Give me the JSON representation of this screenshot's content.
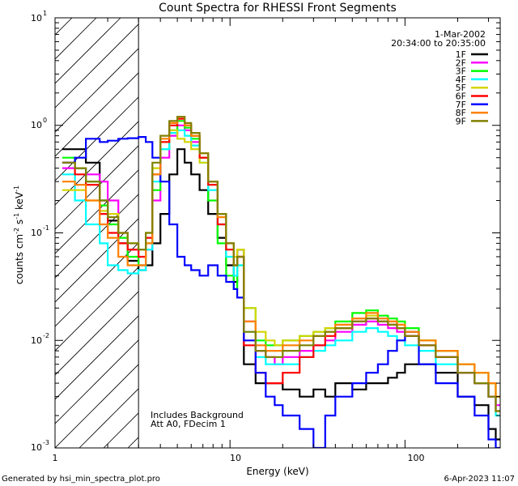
{
  "chart_data": {
    "type": "line",
    "title": "Count Spectra for RHESSI Front Segments",
    "xlabel": "Energy (keV)",
    "ylabel_main": "counts cm",
    "ylabel_exp1": "-2",
    "ylabel_s": " s",
    "ylabel_exp2": "-1",
    "ylabel_kev": " keV",
    "ylabel_exp3": "-1",
    "x_scale": "log",
    "y_scale": "log",
    "xlim": [
      1,
      350
    ],
    "ylim": [
      0.001,
      10
    ],
    "x_ticks": [
      {
        "value": 1,
        "label": "1"
      },
      {
        "value": 10,
        "label": "10"
      },
      {
        "value": 100,
        "label": "100"
      }
    ],
    "y_ticks": [
      {
        "value": 0.001,
        "base": "10",
        "exp": "-3"
      },
      {
        "value": 0.01,
        "base": "10",
        "exp": "-2"
      },
      {
        "value": 0.1,
        "base": "10",
        "exp": "-1"
      },
      {
        "value": 1,
        "base": "10",
        "exp": "0"
      },
      {
        "value": 10,
        "base": "10",
        "exp": "1"
      }
    ],
    "date": "1-Mar-2002",
    "time_range": "20:34:00 to 20:35:00",
    "legend_position": "top-right",
    "annotations": [
      "Includes Background",
      "Att A0, FDecim 1"
    ],
    "hatched_region_keV": [
      1,
      3
    ],
    "series": [
      {
        "name": "1F",
        "color": "#000000",
        "x": [
          1.1,
          1.3,
          1.5,
          1.8,
          2.0,
          2.3,
          2.6,
          3.0,
          3.3,
          3.6,
          4.0,
          4.5,
          5.0,
          5.5,
          6.0,
          6.7,
          7.5,
          8.5,
          9.5,
          10.5,
          11,
          12,
          14,
          16,
          18,
          20,
          25,
          30,
          35,
          40,
          50,
          60,
          70,
          80,
          90,
          100,
          120,
          150,
          200,
          250,
          300,
          330
        ],
        "y": [
          0.6,
          0.6,
          0.45,
          0.2,
          0.13,
          0.08,
          0.055,
          0.045,
          0.05,
          0.08,
          0.15,
          0.35,
          0.6,
          0.45,
          0.35,
          0.25,
          0.15,
          0.09,
          0.05,
          0.035,
          0.07,
          0.006,
          0.004,
          0.004,
          0.004,
          0.0035,
          0.003,
          0.0035,
          0.003,
          0.004,
          0.0035,
          0.004,
          0.004,
          0.0045,
          0.005,
          0.006,
          0.006,
          0.005,
          0.003,
          0.0025,
          0.0015,
          0.0012
        ]
      },
      {
        "name": "2F",
        "color": "#ff00ff",
        "x": [
          1.1,
          1.3,
          1.5,
          1.8,
          2.0,
          2.3,
          2.6,
          3.0,
          3.3,
          3.6,
          4.0,
          4.5,
          5.0,
          5.5,
          6.0,
          6.7,
          7.5,
          8.5,
          9.5,
          10.5,
          11,
          12,
          14,
          16,
          18,
          20,
          25,
          30,
          35,
          40,
          50,
          60,
          70,
          80,
          90,
          100,
          120,
          150,
          200,
          250,
          300,
          330
        ],
        "y": [
          0.4,
          0.4,
          0.35,
          0.3,
          0.2,
          0.1,
          0.07,
          0.05,
          0.07,
          0.2,
          0.5,
          0.8,
          1.0,
          0.9,
          0.7,
          0.5,
          0.3,
          0.15,
          0.08,
          0.05,
          0.06,
          0.015,
          0.008,
          0.007,
          0.006,
          0.007,
          0.008,
          0.009,
          0.01,
          0.012,
          0.014,
          0.015,
          0.014,
          0.013,
          0.012,
          0.011,
          0.009,
          0.007,
          0.005,
          0.004,
          0.003,
          0.0025
        ]
      },
      {
        "name": "3F",
        "color": "#00ff00",
        "x": [
          1.1,
          1.3,
          1.5,
          1.8,
          2.0,
          2.3,
          2.6,
          3.0,
          3.3,
          3.6,
          4.0,
          4.5,
          5.0,
          5.5,
          6.0,
          6.7,
          7.5,
          8.5,
          9.5,
          10.5,
          11,
          12,
          14,
          16,
          18,
          20,
          25,
          30,
          35,
          40,
          50,
          60,
          70,
          80,
          90,
          100,
          120,
          150,
          200,
          250,
          300,
          330
        ],
        "y": [
          0.5,
          0.4,
          0.3,
          0.18,
          0.12,
          0.09,
          0.06,
          0.05,
          0.08,
          0.25,
          0.6,
          0.9,
          1.1,
          0.95,
          0.75,
          0.5,
          0.2,
          0.08,
          0.04,
          0.03,
          0.05,
          0.02,
          0.01,
          0.009,
          0.009,
          0.01,
          0.011,
          0.012,
          0.013,
          0.015,
          0.018,
          0.019,
          0.017,
          0.016,
          0.015,
          0.013,
          0.01,
          0.008,
          0.006,
          0.005,
          0.004,
          0.003
        ]
      },
      {
        "name": "4F",
        "color": "#00ffff",
        "x": [
          1.1,
          1.3,
          1.5,
          1.8,
          2.0,
          2.3,
          2.6,
          3.0,
          3.3,
          3.6,
          4.0,
          4.5,
          5.0,
          5.5,
          6.0,
          6.7,
          7.5,
          8.5,
          9.5,
          10.5,
          11,
          12,
          14,
          16,
          18,
          20,
          25,
          30,
          35,
          40,
          50,
          60,
          70,
          80,
          90,
          100,
          120,
          150,
          200,
          250,
          300,
          330
        ],
        "y": [
          0.35,
          0.2,
          0.12,
          0.08,
          0.05,
          0.045,
          0.042,
          0.045,
          0.07,
          0.3,
          0.6,
          0.85,
          0.9,
          0.8,
          0.65,
          0.45,
          0.25,
          0.12,
          0.06,
          0.04,
          0.05,
          0.012,
          0.007,
          0.006,
          0.006,
          0.006,
          0.007,
          0.008,
          0.009,
          0.01,
          0.012,
          0.013,
          0.012,
          0.011,
          0.01,
          0.009,
          0.008,
          0.006,
          0.005,
          0.004,
          0.003,
          0.002
        ]
      },
      {
        "name": "5F",
        "color": "#d4d400",
        "x": [
          1.1,
          1.3,
          1.5,
          1.8,
          2.0,
          2.3,
          2.6,
          3.0,
          3.3,
          3.6,
          4.0,
          4.5,
          5.0,
          5.5,
          6.0,
          6.7,
          7.5,
          8.5,
          9.5,
          10.5,
          11,
          12,
          14,
          16,
          18,
          20,
          25,
          30,
          35,
          40,
          50,
          60,
          70,
          80,
          90,
          100,
          120,
          150,
          200,
          250,
          300,
          330
        ],
        "y": [
          0.25,
          0.25,
          0.2,
          0.16,
          0.15,
          0.1,
          0.08,
          0.07,
          0.1,
          0.4,
          0.7,
          0.9,
          0.75,
          0.7,
          0.6,
          0.45,
          0.3,
          0.15,
          0.08,
          0.06,
          0.07,
          0.02,
          0.012,
          0.01,
          0.009,
          0.01,
          0.011,
          0.012,
          0.013,
          0.014,
          0.016,
          0.017,
          0.016,
          0.015,
          0.014,
          0.012,
          0.01,
          0.008,
          0.006,
          0.005,
          0.004,
          0.003
        ]
      },
      {
        "name": "6F",
        "color": "#ff0000",
        "x": [
          1.1,
          1.3,
          1.5,
          1.8,
          2.0,
          2.3,
          2.6,
          3.0,
          3.3,
          3.6,
          4.0,
          4.5,
          5.0,
          5.5,
          6.0,
          6.7,
          7.5,
          8.5,
          9.5,
          10.5,
          11,
          12,
          14,
          16,
          18,
          20,
          25,
          30,
          35,
          40,
          50,
          60,
          70,
          80,
          90,
          100,
          120,
          150,
          200,
          250,
          300,
          330
        ],
        "y": [
          0.45,
          0.35,
          0.28,
          0.15,
          0.1,
          0.08,
          0.07,
          0.06,
          0.09,
          0.35,
          0.7,
          1.0,
          1.15,
          1.0,
          0.8,
          0.5,
          0.28,
          0.12,
          0.07,
          0.05,
          0.06,
          0.009,
          0.005,
          0.004,
          0.004,
          0.005,
          0.007,
          0.009,
          0.011,
          0.013,
          0.015,
          0.016,
          0.015,
          0.014,
          0.013,
          0.011,
          0.009,
          0.007,
          0.005,
          0.004,
          0.003,
          0.0022
        ]
      },
      {
        "name": "7F",
        "color": "#0000ff",
        "x": [
          1.1,
          1.3,
          1.5,
          1.8,
          2.0,
          2.3,
          2.6,
          3.0,
          3.3,
          3.6,
          4.0,
          4.5,
          5.0,
          5.5,
          6.0,
          6.7,
          7.5,
          8.5,
          9.5,
          10.5,
          11,
          12,
          14,
          16,
          18,
          20,
          25,
          30,
          35,
          40,
          50,
          60,
          70,
          80,
          90,
          100,
          120,
          150,
          200,
          250,
          300,
          330
        ],
        "y": [
          0.45,
          0.5,
          0.75,
          0.7,
          0.72,
          0.75,
          0.76,
          0.78,
          0.7,
          0.5,
          0.3,
          0.12,
          0.06,
          0.05,
          0.045,
          0.04,
          0.05,
          0.04,
          0.035,
          0.03,
          0.025,
          0.01,
          0.005,
          0.003,
          0.0025,
          0.002,
          0.0015,
          0.001,
          0.002,
          0.003,
          0.004,
          0.005,
          0.006,
          0.008,
          0.01,
          0.012,
          0.006,
          0.004,
          0.003,
          0.002,
          0.0012,
          0.001
        ]
      },
      {
        "name": "8F",
        "color": "#ff8000",
        "x": [
          1.1,
          1.3,
          1.5,
          1.8,
          2.0,
          2.3,
          2.6,
          3.0,
          3.3,
          3.6,
          4.0,
          4.5,
          5.0,
          5.5,
          6.0,
          6.7,
          7.5,
          8.5,
          9.5,
          10.5,
          11,
          12,
          14,
          16,
          18,
          20,
          25,
          30,
          35,
          40,
          50,
          60,
          70,
          80,
          90,
          100,
          120,
          150,
          200,
          250,
          300,
          330
        ],
        "y": [
          0.3,
          0.28,
          0.2,
          0.12,
          0.09,
          0.06,
          0.05,
          0.05,
          0.08,
          0.35,
          0.75,
          1.05,
          1.2,
          1.0,
          0.8,
          0.55,
          0.3,
          0.14,
          0.08,
          0.05,
          0.06,
          0.015,
          0.009,
          0.008,
          0.008,
          0.009,
          0.01,
          0.011,
          0.012,
          0.014,
          0.016,
          0.018,
          0.016,
          0.015,
          0.014,
          0.012,
          0.01,
          0.008,
          0.006,
          0.005,
          0.004,
          0.003
        ]
      },
      {
        "name": "9F",
        "color": "#808000",
        "x": [
          1.1,
          1.3,
          1.5,
          1.8,
          2.0,
          2.3,
          2.6,
          3.0,
          3.3,
          3.6,
          4.0,
          4.5,
          5.0,
          5.5,
          6.0,
          6.7,
          7.5,
          8.5,
          9.5,
          10.5,
          11,
          12,
          14,
          16,
          18,
          20,
          25,
          30,
          35,
          40,
          50,
          60,
          70,
          80,
          90,
          100,
          120,
          150,
          200,
          250,
          300,
          330
        ],
        "y": [
          0.45,
          0.4,
          0.3,
          0.2,
          0.14,
          0.1,
          0.08,
          0.07,
          0.1,
          0.45,
          0.8,
          1.1,
          1.2,
          1.05,
          0.85,
          0.55,
          0.3,
          0.15,
          0.08,
          0.05,
          0.06,
          0.012,
          0.008,
          0.007,
          0.007,
          0.008,
          0.009,
          0.011,
          0.012,
          0.013,
          0.015,
          0.016,
          0.015,
          0.014,
          0.013,
          0.011,
          0.009,
          0.007,
          0.005,
          0.004,
          0.003,
          0.0022
        ]
      }
    ]
  },
  "footer": {
    "generated_by": "Generated by hsi_min_spectra_plot.pro",
    "timestamp": "6-Apr-2023 11:07"
  }
}
